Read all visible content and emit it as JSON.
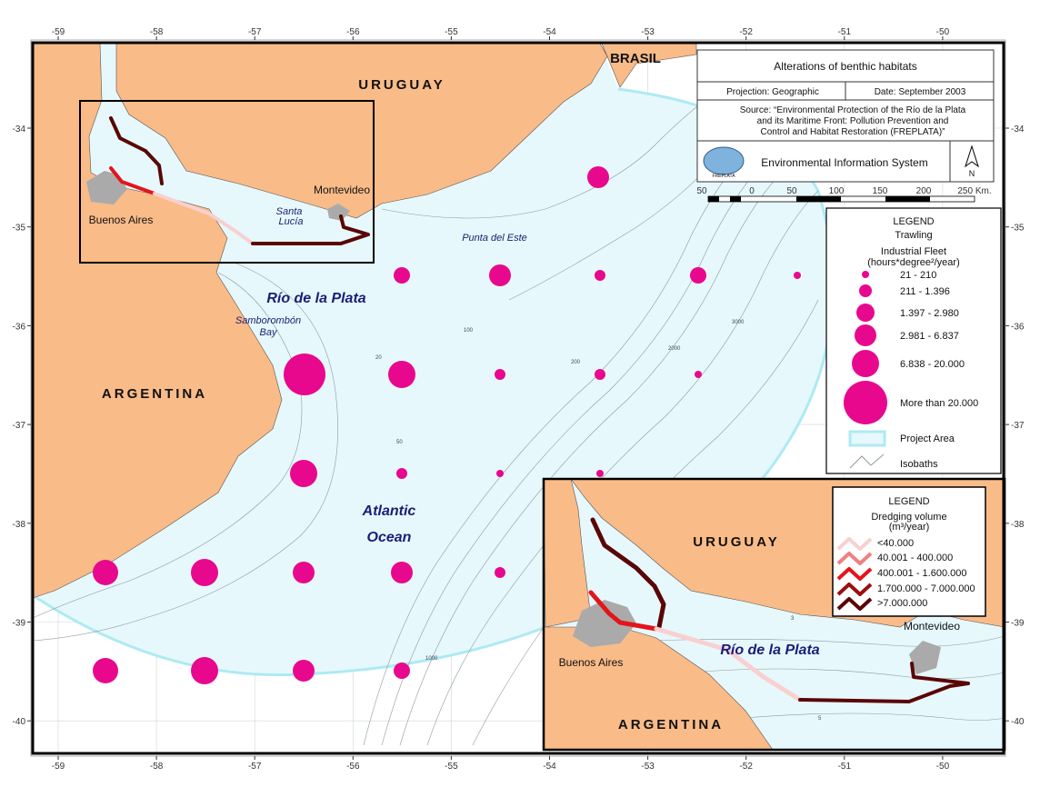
{
  "header": {
    "title": "Alterations of benthic habitats",
    "projection": "Projection: Geographic",
    "date": "Date: September 2003",
    "source": [
      "Source: “Environmental Protection of the Río de la Plata",
      "and its Maritime Front: Pollution Prevention and",
      "Control and Habitat Restoration (FREPLATA)”"
    ],
    "logo": "FREPLATA",
    "system": "Environmental Information System",
    "north": "N"
  },
  "scale": [
    "50",
    "0",
    "50",
    "100",
    "150",
    "200",
    "250 Km."
  ],
  "axes": {
    "lon": [
      -59,
      -58,
      -57,
      -56,
      -55,
      -54,
      -53,
      -52,
      -51,
      -50
    ],
    "lat": [
      -34,
      -35,
      -36,
      -37,
      -38,
      -39,
      -40
    ]
  },
  "places": [
    {
      "label": "URUGUAY"
    },
    {
      "label": "BRASIL"
    },
    {
      "label": "ARGENTINA"
    },
    {
      "label": "Montevideo"
    },
    {
      "label": "Buenos Aires"
    },
    {
      "label": [
        "Santa",
        "Lucía"
      ]
    },
    {
      "label": "Punta del Este"
    },
    {
      "label": "Río de la Plata"
    },
    {
      "label": [
        "Samborombón",
        "Bay"
      ]
    },
    {
      "label": [
        "Atlantic",
        "Ocean"
      ]
    }
  ],
  "isobath_labels": [
    "20",
    "50",
    "100",
    "200",
    "1000",
    "2000",
    "3000"
  ],
  "legend": {
    "title": "LEGEND",
    "subtitle": "Trawling",
    "fleet": [
      "Industrial Fleet",
      "(hours*degree²/year)"
    ],
    "classes": [
      "21 - 210",
      "211 - 1.396",
      "1.397 - 2.980",
      "2.981 - 6.837",
      "6.838 - 20.000",
      "More than 20.000"
    ],
    "project_area": "Project Area",
    "isobaths": "Isobaths"
  },
  "inset": {
    "legend_title": "LEGEND",
    "dredging": [
      "Dredging volume",
      "(m³/year)"
    ],
    "classes": [
      "<40.000",
      "40.001 - 400.000",
      "400.001 - 1.600.000",
      "1.700.000 - 7.000.000",
      ">7.000.000"
    ],
    "places": [
      {
        "label": "URUGUAY"
      },
      {
        "label": "Montevideo"
      },
      {
        "label": "Río de la Plata"
      },
      {
        "label": "Buenos Aires"
      },
      {
        "label": "ARGENTINA"
      }
    ],
    "isobath_labels": [
      "3",
      "5"
    ]
  }
}
